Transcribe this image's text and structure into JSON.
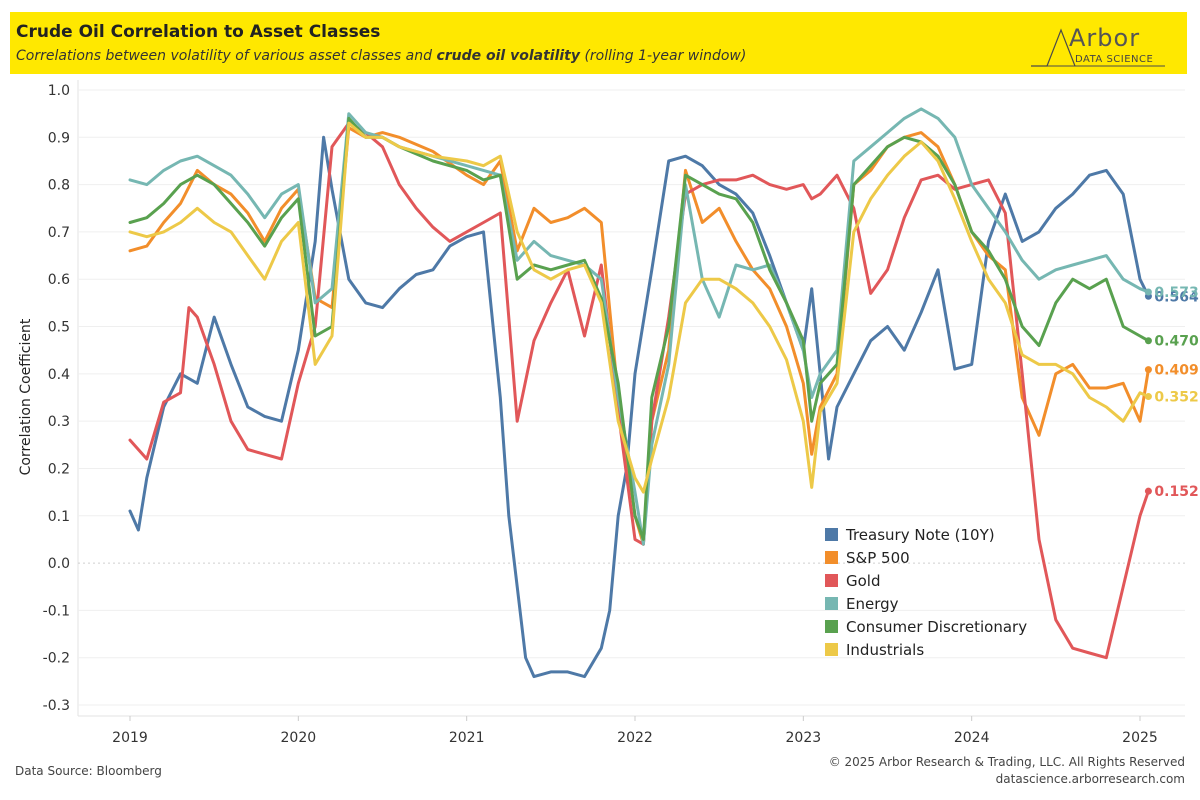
{
  "header": {
    "title": "Crude Oil Correlation to Asset Classes",
    "subtitle_pre": "Correlations between volatility of various asset classes and ",
    "subtitle_bold": "crude oil volatility",
    "subtitle_post": " (rolling 1-year window)",
    "logo_text": "Arbor",
    "logo_sub": "DATA SCIENCE"
  },
  "footer": {
    "source": "Data Source: Bloomberg",
    "copyright": "© 2025 Arbor Research & Trading, LLC. All Rights Reserved",
    "site": "datascience.arborresearch.com"
  },
  "chart_data": {
    "type": "line",
    "ylabel": "Correlation Coefficient",
    "xlabel": "",
    "ylim": [
      -0.32,
      1.0
    ],
    "xlim": [
      2018.8,
      2025.25
    ],
    "x_ticks": [
      "2019",
      "2020",
      "2021",
      "2022",
      "2023",
      "2024",
      "2025"
    ],
    "y_ticks": [
      "1.0",
      "0.9",
      "0.8",
      "0.7",
      "0.6",
      "0.5",
      "0.4",
      "0.3",
      "0.2",
      "0.1",
      "0.0",
      "-0.1",
      "-0.2",
      "-0.3"
    ],
    "grid": true,
    "legend_position": "bottom-right",
    "series": [
      {
        "name": "Treasury Note (10Y)",
        "color": "#4e79a7",
        "last_label": "0.564",
        "x": [
          2019.0,
          2019.05,
          2019.1,
          2019.2,
          2019.3,
          2019.4,
          2019.5,
          2019.6,
          2019.7,
          2019.8,
          2019.9,
          2020.0,
          2020.1,
          2020.15,
          2020.2,
          2020.3,
          2020.4,
          2020.5,
          2020.6,
          2020.7,
          2020.8,
          2020.9,
          2021.0,
          2021.1,
          2021.2,
          2021.25,
          2021.3,
          2021.35,
          2021.4,
          2021.5,
          2021.6,
          2021.7,
          2021.8,
          2021.85,
          2021.9,
          2021.95,
          2022.0,
          2022.1,
          2022.2,
          2022.3,
          2022.4,
          2022.5,
          2022.6,
          2022.7,
          2022.8,
          2022.9,
          2023.0,
          2023.05,
          2023.1,
          2023.15,
          2023.2,
          2023.3,
          2023.4,
          2023.5,
          2023.6,
          2023.7,
          2023.8,
          2023.9,
          2024.0,
          2024.1,
          2024.2,
          2024.3,
          2024.4,
          2024.5,
          2024.6,
          2024.7,
          2024.8,
          2024.9,
          2025.0,
          2025.05
        ],
        "y": [
          0.11,
          0.07,
          0.18,
          0.33,
          0.4,
          0.38,
          0.52,
          0.42,
          0.33,
          0.31,
          0.3,
          0.45,
          0.68,
          0.9,
          0.79,
          0.6,
          0.55,
          0.54,
          0.58,
          0.61,
          0.62,
          0.67,
          0.69,
          0.7,
          0.35,
          0.1,
          -0.05,
          -0.2,
          -0.24,
          -0.23,
          -0.23,
          -0.24,
          -0.18,
          -0.1,
          0.1,
          0.2,
          0.4,
          0.62,
          0.85,
          0.86,
          0.84,
          0.8,
          0.78,
          0.74,
          0.65,
          0.55,
          0.45,
          0.58,
          0.4,
          0.22,
          0.33,
          0.4,
          0.47,
          0.5,
          0.45,
          0.53,
          0.62,
          0.41,
          0.42,
          0.68,
          0.78,
          0.68,
          0.7,
          0.75,
          0.78,
          0.82,
          0.83,
          0.78,
          0.6,
          0.564
        ]
      },
      {
        "name": "S&P 500",
        "color": "#f28e2b",
        "last_label": "0.409",
        "x": [
          2019.0,
          2019.1,
          2019.2,
          2019.3,
          2019.4,
          2019.5,
          2019.6,
          2019.7,
          2019.8,
          2019.9,
          2020.0,
          2020.1,
          2020.2,
          2020.3,
          2020.4,
          2020.5,
          2020.6,
          2020.8,
          2021.0,
          2021.1,
          2021.2,
          2021.3,
          2021.4,
          2021.5,
          2021.6,
          2021.7,
          2021.8,
          2021.9,
          2022.0,
          2022.05,
          2022.1,
          2022.2,
          2022.3,
          2022.4,
          2022.5,
          2022.6,
          2022.7,
          2022.8,
          2022.9,
          2023.0,
          2023.05,
          2023.1,
          2023.2,
          2023.3,
          2023.4,
          2023.5,
          2023.6,
          2023.7,
          2023.8,
          2023.9,
          2024.0,
          2024.1,
          2024.2,
          2024.3,
          2024.4,
          2024.5,
          2024.6,
          2024.7,
          2024.8,
          2024.9,
          2025.0,
          2025.05
        ],
        "y": [
          0.66,
          0.67,
          0.72,
          0.76,
          0.83,
          0.8,
          0.78,
          0.74,
          0.68,
          0.75,
          0.79,
          0.56,
          0.54,
          0.92,
          0.9,
          0.91,
          0.9,
          0.87,
          0.82,
          0.8,
          0.85,
          0.66,
          0.75,
          0.72,
          0.73,
          0.75,
          0.72,
          0.35,
          0.1,
          0.04,
          0.3,
          0.45,
          0.83,
          0.72,
          0.75,
          0.68,
          0.62,
          0.58,
          0.5,
          0.38,
          0.23,
          0.33,
          0.4,
          0.8,
          0.83,
          0.88,
          0.9,
          0.91,
          0.88,
          0.8,
          0.7,
          0.65,
          0.62,
          0.35,
          0.27,
          0.4,
          0.42,
          0.37,
          0.37,
          0.38,
          0.3,
          0.409
        ]
      },
      {
        "name": "Gold",
        "color": "#e15759",
        "last_label": "0.152",
        "x": [
          2019.0,
          2019.1,
          2019.2,
          2019.3,
          2019.35,
          2019.4,
          2019.5,
          2019.6,
          2019.7,
          2019.8,
          2019.9,
          2020.0,
          2020.1,
          2020.2,
          2020.3,
          2020.4,
          2020.5,
          2020.6,
          2020.7,
          2020.8,
          2020.9,
          2021.0,
          2021.1,
          2021.2,
          2021.3,
          2021.4,
          2021.5,
          2021.6,
          2021.7,
          2021.8,
          2021.9,
          2022.0,
          2022.05,
          2022.1,
          2022.2,
          2022.3,
          2022.4,
          2022.5,
          2022.6,
          2022.7,
          2022.8,
          2022.9,
          2023.0,
          2023.05,
          2023.1,
          2023.2,
          2023.3,
          2023.4,
          2023.5,
          2023.6,
          2023.7,
          2023.8,
          2023.9,
          2024.0,
          2024.1,
          2024.2,
          2024.3,
          2024.4,
          2024.5,
          2024.6,
          2024.7,
          2024.8,
          2024.9,
          2025.0,
          2025.05
        ],
        "y": [
          0.26,
          0.22,
          0.34,
          0.36,
          0.54,
          0.52,
          0.42,
          0.3,
          0.24,
          0.23,
          0.22,
          0.38,
          0.5,
          0.88,
          0.93,
          0.91,
          0.88,
          0.8,
          0.75,
          0.71,
          0.68,
          0.7,
          0.72,
          0.74,
          0.3,
          0.47,
          0.55,
          0.62,
          0.48,
          0.63,
          0.32,
          0.05,
          0.04,
          0.3,
          0.52,
          0.78,
          0.8,
          0.81,
          0.81,
          0.82,
          0.8,
          0.79,
          0.8,
          0.77,
          0.78,
          0.82,
          0.75,
          0.57,
          0.62,
          0.73,
          0.81,
          0.82,
          0.79,
          0.8,
          0.81,
          0.74,
          0.4,
          0.05,
          -0.12,
          -0.18,
          -0.19,
          -0.2,
          -0.05,
          0.1,
          0.152
        ]
      },
      {
        "name": "Energy",
        "color": "#76b7b2",
        "last_label": "0.573",
        "x": [
          2019.0,
          2019.1,
          2019.2,
          2019.3,
          2019.4,
          2019.5,
          2019.6,
          2019.7,
          2019.8,
          2019.9,
          2020.0,
          2020.1,
          2020.2,
          2020.3,
          2020.4,
          2020.5,
          2020.6,
          2020.8,
          2021.0,
          2021.1,
          2021.2,
          2021.3,
          2021.4,
          2021.5,
          2021.6,
          2021.7,
          2021.8,
          2021.9,
          2022.0,
          2022.05,
          2022.1,
          2022.2,
          2022.3,
          2022.4,
          2022.5,
          2022.6,
          2022.7,
          2022.8,
          2022.9,
          2023.0,
          2023.05,
          2023.1,
          2023.2,
          2023.3,
          2023.4,
          2023.5,
          2023.6,
          2023.7,
          2023.8,
          2023.9,
          2024.0,
          2024.1,
          2024.2,
          2024.3,
          2024.4,
          2024.5,
          2024.6,
          2024.7,
          2024.8,
          2024.9,
          2025.0,
          2025.05
        ],
        "y": [
          0.81,
          0.8,
          0.83,
          0.85,
          0.86,
          0.84,
          0.82,
          0.78,
          0.73,
          0.78,
          0.8,
          0.55,
          0.58,
          0.95,
          0.91,
          0.9,
          0.88,
          0.86,
          0.84,
          0.83,
          0.82,
          0.64,
          0.68,
          0.65,
          0.64,
          0.63,
          0.6,
          0.35,
          0.15,
          0.04,
          0.25,
          0.42,
          0.8,
          0.6,
          0.52,
          0.63,
          0.62,
          0.63,
          0.55,
          0.45,
          0.35,
          0.4,
          0.45,
          0.85,
          0.88,
          0.91,
          0.94,
          0.96,
          0.94,
          0.9,
          0.8,
          0.75,
          0.7,
          0.64,
          0.6,
          0.62,
          0.63,
          0.64,
          0.65,
          0.6,
          0.58,
          0.573
        ]
      },
      {
        "name": "Consumer Discretionary",
        "color": "#59a14f",
        "last_label": "0.470",
        "x": [
          2019.0,
          2019.1,
          2019.2,
          2019.3,
          2019.4,
          2019.5,
          2019.6,
          2019.7,
          2019.8,
          2019.9,
          2020.0,
          2020.1,
          2020.2,
          2020.3,
          2020.4,
          2020.5,
          2020.6,
          2020.8,
          2021.0,
          2021.1,
          2021.2,
          2021.3,
          2021.4,
          2021.5,
          2021.6,
          2021.7,
          2021.8,
          2021.9,
          2022.0,
          2022.05,
          2022.1,
          2022.2,
          2022.3,
          2022.4,
          2022.5,
          2022.6,
          2022.7,
          2022.8,
          2022.9,
          2023.0,
          2023.05,
          2023.1,
          2023.2,
          2023.3,
          2023.4,
          2023.5,
          2023.6,
          2023.7,
          2023.8,
          2023.9,
          2024.0,
          2024.1,
          2024.2,
          2024.3,
          2024.4,
          2024.5,
          2024.6,
          2024.7,
          2024.8,
          2024.9,
          2025.0,
          2025.05
        ],
        "y": [
          0.72,
          0.73,
          0.76,
          0.8,
          0.82,
          0.8,
          0.76,
          0.72,
          0.67,
          0.73,
          0.77,
          0.48,
          0.5,
          0.94,
          0.9,
          0.9,
          0.88,
          0.85,
          0.83,
          0.81,
          0.82,
          0.6,
          0.63,
          0.62,
          0.63,
          0.64,
          0.56,
          0.38,
          0.1,
          0.05,
          0.35,
          0.5,
          0.82,
          0.8,
          0.78,
          0.77,
          0.72,
          0.62,
          0.55,
          0.47,
          0.3,
          0.38,
          0.42,
          0.8,
          0.84,
          0.88,
          0.9,
          0.89,
          0.86,
          0.8,
          0.7,
          0.66,
          0.6,
          0.5,
          0.46,
          0.55,
          0.6,
          0.58,
          0.6,
          0.5,
          0.48,
          0.47
        ]
      },
      {
        "name": "Industrials",
        "color": "#edc948",
        "last_label": "0.352",
        "x": [
          2019.0,
          2019.1,
          2019.2,
          2019.3,
          2019.4,
          2019.5,
          2019.6,
          2019.7,
          2019.8,
          2019.9,
          2020.0,
          2020.1,
          2020.2,
          2020.3,
          2020.4,
          2020.5,
          2020.6,
          2020.8,
          2021.0,
          2021.1,
          2021.2,
          2021.3,
          2021.4,
          2021.5,
          2021.6,
          2021.7,
          2021.8,
          2021.9,
          2022.0,
          2022.05,
          2022.1,
          2022.2,
          2022.3,
          2022.4,
          2022.5,
          2022.6,
          2022.7,
          2022.8,
          2022.9,
          2023.0,
          2023.05,
          2023.1,
          2023.2,
          2023.3,
          2023.4,
          2023.5,
          2023.6,
          2023.7,
          2023.8,
          2023.9,
          2024.0,
          2024.1,
          2024.2,
          2024.3,
          2024.4,
          2024.5,
          2024.6,
          2024.7,
          2024.8,
          2024.9,
          2025.0,
          2025.05
        ],
        "y": [
          0.7,
          0.69,
          0.7,
          0.72,
          0.75,
          0.72,
          0.7,
          0.65,
          0.6,
          0.68,
          0.72,
          0.42,
          0.48,
          0.93,
          0.9,
          0.9,
          0.88,
          0.86,
          0.85,
          0.84,
          0.86,
          0.7,
          0.62,
          0.6,
          0.62,
          0.63,
          0.55,
          0.3,
          0.18,
          0.15,
          0.22,
          0.35,
          0.55,
          0.6,
          0.6,
          0.58,
          0.55,
          0.5,
          0.43,
          0.3,
          0.16,
          0.32,
          0.38,
          0.7,
          0.77,
          0.82,
          0.86,
          0.89,
          0.85,
          0.77,
          0.68,
          0.6,
          0.55,
          0.44,
          0.42,
          0.42,
          0.4,
          0.35,
          0.33,
          0.3,
          0.36,
          0.352
        ]
      }
    ]
  }
}
